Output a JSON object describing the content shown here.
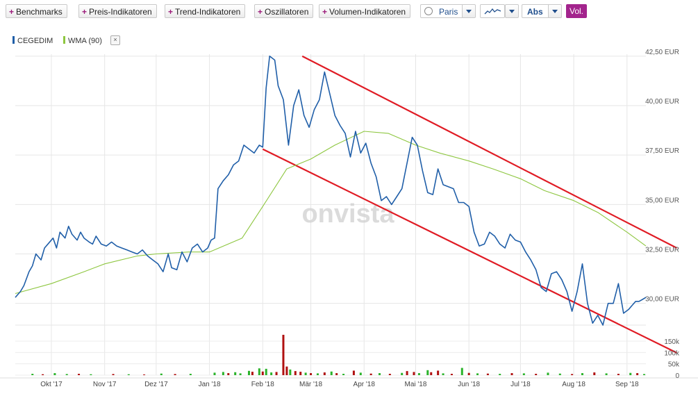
{
  "toolbar": {
    "benchmarks": "Benchmarks",
    "preis": "Preis-Indikatoren",
    "trend": "Trend-Indikatoren",
    "oszillatoren": "Oszillatoren",
    "volumen": "Volumen-Indikatoren",
    "exchange": "Paris",
    "scale": "Abs",
    "vol": "Vol."
  },
  "legend": {
    "series1": "CEGEDIM",
    "series2": "WMA (90)",
    "remove": "×"
  },
  "watermark": "onvista",
  "colors": {
    "price": "#1f5ea8",
    "wma": "#8dc63f",
    "channel": "#e01b24",
    "vol_up": "#2bb32b",
    "vol_down": "#b01010",
    "accent": "#a3248d"
  },
  "chart_data": {
    "type": "line",
    "currency": "EUR",
    "ylim": [
      28.9,
      42.6
    ],
    "yticks": [
      30.0,
      32.5,
      35.0,
      37.5,
      40.0,
      42.5
    ],
    "ytick_labels": [
      "30,00 EUR",
      "32,50 EUR",
      "35,00 EUR",
      "37,50 EUR",
      "40,00 EUR",
      "42,50 EUR"
    ],
    "xlim": [
      "2017-09-10",
      "2018-09-12"
    ],
    "xticks": [
      "2017-10-01",
      "2017-11-01",
      "2017-12-01",
      "2018-01-01",
      "2018-02-01",
      "2018-03-01",
      "2018-04-01",
      "2018-05-01",
      "2018-06-01",
      "2018-07-01",
      "2018-08-01",
      "2018-09-01"
    ],
    "xtick_labels": [
      "Okt '17",
      "Nov '17",
      "Dez '17",
      "Jan '18",
      "Feb '18",
      "Mär '18",
      "Apr '18",
      "Mai '18",
      "Jun '18",
      "Jul '18",
      "Aug '18",
      "Sep '18"
    ],
    "grid": true,
    "legend_position": "top-left",
    "series": [
      {
        "name": "CEGEDIM",
        "x": [
          "2017-09-10",
          "2017-09-13",
          "2017-09-15",
          "2017-09-18",
          "2017-09-20",
          "2017-09-22",
          "2017-09-25",
          "2017-09-27",
          "2017-09-29",
          "2017-10-02",
          "2017-10-04",
          "2017-10-06",
          "2017-10-09",
          "2017-10-11",
          "2017-10-13",
          "2017-10-16",
          "2017-10-18",
          "2017-10-20",
          "2017-10-23",
          "2017-10-25",
          "2017-10-27",
          "2017-10-30",
          "2017-11-02",
          "2017-11-05",
          "2017-11-08",
          "2017-11-11",
          "2017-11-14",
          "2017-11-17",
          "2017-11-20",
          "2017-11-23",
          "2017-11-26",
          "2017-11-29",
          "2017-12-02",
          "2017-12-05",
          "2017-12-08",
          "2017-12-10",
          "2017-12-13",
          "2017-12-16",
          "2017-12-19",
          "2017-12-22",
          "2017-12-25",
          "2017-12-28",
          "2017-12-31",
          "2018-01-02",
          "2018-01-04",
          "2018-01-06",
          "2018-01-09",
          "2018-01-12",
          "2018-01-15",
          "2018-01-18",
          "2018-01-21",
          "2018-01-24",
          "2018-01-27",
          "2018-01-30",
          "2018-02-01",
          "2018-02-03",
          "2018-02-05",
          "2018-02-08",
          "2018-02-10",
          "2018-02-13",
          "2018-02-16",
          "2018-02-19",
          "2018-02-22",
          "2018-02-25",
          "2018-02-28",
          "2018-03-03",
          "2018-03-06",
          "2018-03-09",
          "2018-03-12",
          "2018-03-15",
          "2018-03-18",
          "2018-03-21",
          "2018-03-24",
          "2018-03-27",
          "2018-03-30",
          "2018-04-02",
          "2018-04-05",
          "2018-04-08",
          "2018-04-11",
          "2018-04-14",
          "2018-04-17",
          "2018-04-20",
          "2018-04-23",
          "2018-04-26",
          "2018-04-29",
          "2018-05-02",
          "2018-05-05",
          "2018-05-08",
          "2018-05-11",
          "2018-05-14",
          "2018-05-17",
          "2018-05-20",
          "2018-05-23",
          "2018-05-26",
          "2018-05-29",
          "2018-06-01",
          "2018-06-04",
          "2018-06-07",
          "2018-06-10",
          "2018-06-13",
          "2018-06-16",
          "2018-06-19",
          "2018-06-22",
          "2018-06-25",
          "2018-06-28",
          "2018-07-01",
          "2018-07-04",
          "2018-07-07",
          "2018-07-10",
          "2018-07-13",
          "2018-07-16",
          "2018-07-19",
          "2018-07-22",
          "2018-07-25",
          "2018-07-28",
          "2018-07-31",
          "2018-08-03",
          "2018-08-06",
          "2018-08-09",
          "2018-08-12",
          "2018-08-15",
          "2018-08-18",
          "2018-08-21",
          "2018-08-24",
          "2018-08-27",
          "2018-08-30",
          "2018-09-02",
          "2018-09-04",
          "2018-09-06",
          "2018-09-08",
          "2018-09-10",
          "2018-09-12"
        ],
        "y": [
          30.3,
          30.6,
          30.9,
          31.6,
          31.9,
          32.5,
          32.2,
          32.8,
          33.0,
          33.3,
          32.8,
          33.6,
          33.3,
          33.9,
          33.5,
          33.2,
          33.6,
          33.3,
          33.1,
          33.0,
          33.4,
          33.0,
          32.9,
          33.1,
          32.9,
          32.8,
          32.7,
          32.6,
          32.5,
          32.7,
          32.4,
          32.2,
          32.0,
          31.6,
          32.5,
          31.8,
          31.7,
          32.6,
          32.1,
          32.8,
          33.0,
          32.6,
          32.8,
          33.2,
          33.3,
          35.8,
          36.2,
          36.5,
          37.0,
          37.2,
          38.0,
          37.8,
          37.6,
          38.0,
          37.9,
          40.9,
          42.5,
          42.3,
          41.0,
          40.3,
          38.0,
          40.0,
          40.8,
          39.5,
          38.9,
          39.8,
          40.3,
          41.7,
          40.6,
          39.5,
          39.0,
          38.6,
          37.4,
          38.7,
          37.6,
          38.1,
          37.1,
          36.4,
          35.2,
          35.4,
          35.0,
          35.4,
          35.8,
          37.1,
          38.4,
          38.0,
          36.7,
          35.6,
          35.5,
          36.8,
          36.0,
          35.9,
          35.8,
          35.1,
          35.1,
          34.9,
          33.6,
          32.9,
          33.0,
          33.6,
          33.4,
          33.0,
          32.8,
          33.5,
          33.2,
          33.1,
          32.6,
          32.2,
          31.7,
          30.8,
          30.6,
          31.5,
          31.6,
          31.2,
          30.6,
          29.6,
          30.6,
          32.0,
          30.0,
          29.0,
          29.4,
          28.9,
          30.0,
          30.0,
          31.0,
          29.5,
          29.7,
          29.9,
          30.1,
          30.1,
          30.2,
          30.3
        ]
      },
      {
        "name": "WMA (90)",
        "x": [
          "2017-09-10",
          "2017-10-01",
          "2017-10-20",
          "2017-11-01",
          "2017-11-20",
          "2017-12-01",
          "2017-12-20",
          "2018-01-01",
          "2018-01-20",
          "2018-02-01",
          "2018-02-15",
          "2018-03-01",
          "2018-03-15",
          "2018-04-01",
          "2018-04-15",
          "2018-05-01",
          "2018-05-15",
          "2018-06-01",
          "2018-06-15",
          "2018-07-01",
          "2018-07-15",
          "2018-08-01",
          "2018-08-15",
          "2018-09-01",
          "2018-09-12"
        ],
        "y": [
          30.5,
          31.0,
          31.6,
          32.0,
          32.4,
          32.5,
          32.6,
          32.6,
          33.3,
          34.9,
          36.8,
          37.3,
          38.0,
          38.7,
          38.6,
          38.0,
          37.6,
          37.2,
          36.8,
          36.3,
          35.7,
          35.2,
          34.6,
          33.6,
          32.9
        ]
      }
    ],
    "channel_lines": [
      {
        "from": {
          "x": "2018-02-24",
          "y": 42.5
        },
        "to": {
          "x": "2018-09-30",
          "y": 32.8
        }
      },
      {
        "from": {
          "x": "2018-02-01",
          "y": 37.8
        },
        "to": {
          "x": "2018-09-30",
          "y": 27.5
        }
      }
    ],
    "volume": {
      "ylim": [
        0,
        190000
      ],
      "yticks": [
        0,
        50000,
        100000,
        150000
      ],
      "ytick_labels": [
        "0",
        "50k",
        "100k",
        "150k"
      ],
      "bars": [
        {
          "d": "2017-09-20",
          "v": 6000,
          "up": true
        },
        {
          "d": "2017-09-26",
          "v": 4000,
          "up": false
        },
        {
          "d": "2017-10-03",
          "v": 9000,
          "up": true
        },
        {
          "d": "2017-10-10",
          "v": 5000,
          "up": true
        },
        {
          "d": "2017-10-17",
          "v": 6000,
          "up": false
        },
        {
          "d": "2017-10-24",
          "v": 4000,
          "up": true
        },
        {
          "d": "2017-11-06",
          "v": 5000,
          "up": false
        },
        {
          "d": "2017-11-15",
          "v": 4000,
          "up": true
        },
        {
          "d": "2017-11-24",
          "v": 3000,
          "up": false
        },
        {
          "d": "2017-12-04",
          "v": 7000,
          "up": true
        },
        {
          "d": "2017-12-12",
          "v": 5000,
          "up": false
        },
        {
          "d": "2017-12-21",
          "v": 6000,
          "up": true
        },
        {
          "d": "2018-01-04",
          "v": 11000,
          "up": true
        },
        {
          "d": "2018-01-09",
          "v": 14000,
          "up": true
        },
        {
          "d": "2018-01-12",
          "v": 9000,
          "up": false
        },
        {
          "d": "2018-01-16",
          "v": 13000,
          "up": true
        },
        {
          "d": "2018-01-19",
          "v": 8000,
          "up": true
        },
        {
          "d": "2018-01-24",
          "v": 19000,
          "up": true
        },
        {
          "d": "2018-01-26",
          "v": 15000,
          "up": false
        },
        {
          "d": "2018-01-30",
          "v": 30000,
          "up": true
        },
        {
          "d": "2018-02-01",
          "v": 16000,
          "up": false
        },
        {
          "d": "2018-02-03",
          "v": 28000,
          "up": true
        },
        {
          "d": "2018-02-06",
          "v": 12000,
          "up": true
        },
        {
          "d": "2018-02-09",
          "v": 14000,
          "up": false
        },
        {
          "d": "2018-02-13",
          "v": 178000,
          "up": false
        },
        {
          "d": "2018-02-15",
          "v": 38000,
          "up": false
        },
        {
          "d": "2018-02-17",
          "v": 25000,
          "up": true
        },
        {
          "d": "2018-02-20",
          "v": 18000,
          "up": false
        },
        {
          "d": "2018-02-23",
          "v": 15000,
          "up": false
        },
        {
          "d": "2018-02-26",
          "v": 11000,
          "up": true
        },
        {
          "d": "2018-03-01",
          "v": 9000,
          "up": false
        },
        {
          "d": "2018-03-05",
          "v": 8000,
          "up": true
        },
        {
          "d": "2018-03-09",
          "v": 12000,
          "up": false
        },
        {
          "d": "2018-03-13",
          "v": 16000,
          "up": true
        },
        {
          "d": "2018-03-16",
          "v": 9000,
          "up": false
        },
        {
          "d": "2018-03-20",
          "v": 6000,
          "up": true
        },
        {
          "d": "2018-03-26",
          "v": 20000,
          "up": false
        },
        {
          "d": "2018-03-30",
          "v": 11000,
          "up": true
        },
        {
          "d": "2018-04-05",
          "v": 7000,
          "up": false
        },
        {
          "d": "2018-04-10",
          "v": 9000,
          "up": true
        },
        {
          "d": "2018-04-16",
          "v": 6000,
          "up": false
        },
        {
          "d": "2018-04-23",
          "v": 10000,
          "up": true
        },
        {
          "d": "2018-04-26",
          "v": 18000,
          "up": false
        },
        {
          "d": "2018-04-30",
          "v": 14000,
          "up": false
        },
        {
          "d": "2018-05-03",
          "v": 9000,
          "up": true
        },
        {
          "d": "2018-05-08",
          "v": 22000,
          "up": true
        },
        {
          "d": "2018-05-10",
          "v": 13000,
          "up": false
        },
        {
          "d": "2018-05-14",
          "v": 20000,
          "up": false
        },
        {
          "d": "2018-05-17",
          "v": 8000,
          "up": true
        },
        {
          "d": "2018-05-22",
          "v": 6000,
          "up": false
        },
        {
          "d": "2018-05-28",
          "v": 32000,
          "up": true
        },
        {
          "d": "2018-06-01",
          "v": 10000,
          "up": false
        },
        {
          "d": "2018-06-06",
          "v": 8000,
          "up": true
        },
        {
          "d": "2018-06-12",
          "v": 7000,
          "up": false
        },
        {
          "d": "2018-06-19",
          "v": 6000,
          "up": true
        },
        {
          "d": "2018-06-26",
          "v": 9000,
          "up": false
        },
        {
          "d": "2018-07-03",
          "v": 8000,
          "up": true
        },
        {
          "d": "2018-07-10",
          "v": 6000,
          "up": false
        },
        {
          "d": "2018-07-17",
          "v": 11000,
          "up": true
        },
        {
          "d": "2018-07-24",
          "v": 7000,
          "up": true
        },
        {
          "d": "2018-07-31",
          "v": 5000,
          "up": false
        },
        {
          "d": "2018-08-06",
          "v": 9000,
          "up": true
        },
        {
          "d": "2018-08-13",
          "v": 12000,
          "up": false
        },
        {
          "d": "2018-08-20",
          "v": 8000,
          "up": true
        },
        {
          "d": "2018-08-27",
          "v": 6000,
          "up": false
        },
        {
          "d": "2018-09-03",
          "v": 10000,
          "up": true
        },
        {
          "d": "2018-09-07",
          "v": 9000,
          "up": false
        },
        {
          "d": "2018-09-11",
          "v": 5000,
          "up": true
        }
      ]
    }
  }
}
